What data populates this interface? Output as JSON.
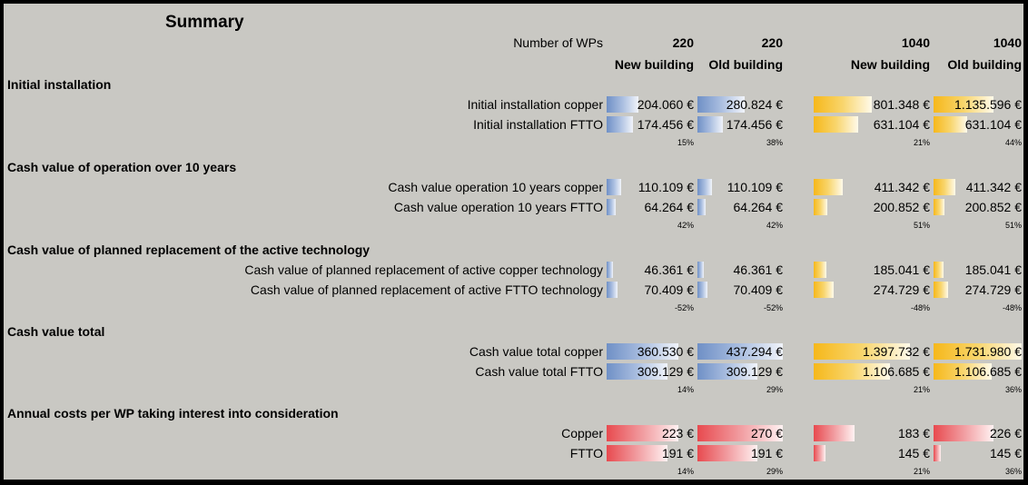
{
  "title": "Summary",
  "header": {
    "wp_label": "Number of WPs",
    "columns": [
      {
        "wps": "220",
        "type": "New building"
      },
      {
        "wps": "220",
        "type": "Old building"
      },
      {
        "wps": "1040",
        "type": "New building"
      },
      {
        "wps": "1040",
        "type": "Old building"
      }
    ]
  },
  "sections": [
    {
      "title": "Initial installation",
      "rows": [
        {
          "label": "Initial installation copper",
          "cells": [
            {
              "text": "204.060 €",
              "fill": 0.36
            },
            {
              "text": "280.824 €",
              "fill": 0.55
            },
            {
              "text": "801.348 €",
              "fill": 0.5
            },
            {
              "text": "1.135.596 €",
              "fill": 0.68
            }
          ]
        },
        {
          "label": "Initial installation FTTO",
          "cells": [
            {
              "text": "174.456 €",
              "fill": 0.3
            },
            {
              "text": "174.456 €",
              "fill": 0.3
            },
            {
              "text": "631.104 €",
              "fill": 0.38
            },
            {
              "text": "631.104 €",
              "fill": 0.38
            }
          ]
        }
      ],
      "diffs": [
        "15%",
        "38%",
        "21%",
        "44%"
      ]
    },
    {
      "title": "Cash value of operation over 10 years",
      "rows": [
        {
          "label": "Cash value operation 10 years copper",
          "cells": [
            {
              "text": "110.109 €",
              "fill": 0.17
            },
            {
              "text": "110.109 €",
              "fill": 0.17
            },
            {
              "text": "411.342 €",
              "fill": 0.25
            },
            {
              "text": "411.342 €",
              "fill": 0.25
            }
          ]
        },
        {
          "label": "Cash value operation 10 years FTTO",
          "cells": [
            {
              "text": "64.264 €",
              "fill": 0.1
            },
            {
              "text": "64.264 €",
              "fill": 0.1
            },
            {
              "text": "200.852 €",
              "fill": 0.12
            },
            {
              "text": "200.852 €",
              "fill": 0.12
            }
          ]
        }
      ],
      "diffs": [
        "42%",
        "42%",
        "51%",
        "51%"
      ]
    },
    {
      "title": "Cash value of planned replacement of the active technology",
      "rows": [
        {
          "label": "Cash value of planned replacement of active copper technology",
          "cells": [
            {
              "text": "46.361 €",
              "fill": 0.07
            },
            {
              "text": "46.361 €",
              "fill": 0.07
            },
            {
              "text": "185.041 €",
              "fill": 0.11
            },
            {
              "text": "185.041 €",
              "fill": 0.11
            }
          ]
        },
        {
          "label": "Cash value of planned replacement of active FTTO technology",
          "cells": [
            {
              "text": "70.409 €",
              "fill": 0.12
            },
            {
              "text": "70.409 €",
              "fill": 0.12
            },
            {
              "text": "274.729 €",
              "fill": 0.17
            },
            {
              "text": "274.729 €",
              "fill": 0.17
            }
          ]
        }
      ],
      "diffs": [
        "-52%",
        "-52%",
        "-48%",
        "-48%"
      ]
    },
    {
      "title": "Cash value total",
      "rows": [
        {
          "label": "Cash value total copper",
          "cells": [
            {
              "text": "360.530 €",
              "fill": 0.82
            },
            {
              "text": "437.294 €",
              "fill": 1.0
            },
            {
              "text": "1.397.732 €",
              "fill": 0.83
            },
            {
              "text": "1.731.980 €",
              "fill": 1.0
            }
          ]
        },
        {
          "label": "Cash value total FTTO",
          "cells": [
            {
              "text": "309.129 €",
              "fill": 0.7
            },
            {
              "text": "309.129 €",
              "fill": 0.7
            },
            {
              "text": "1.106.685 €",
              "fill": 0.66
            },
            {
              "text": "1.106.685 €",
              "fill": 0.66
            }
          ]
        }
      ],
      "diffs": [
        "14%",
        "29%",
        "21%",
        "36%"
      ]
    },
    {
      "title": "Annual costs per WP taking interest into consideration",
      "rows": [
        {
          "label": "Copper",
          "cells": [
            {
              "text": "223 €",
              "fill": 0.82
            },
            {
              "text": "270 €",
              "fill": 1.0
            },
            {
              "text": "183 €",
              "fill": 0.35
            },
            {
              "text": "226 €",
              "fill": 0.68
            }
          ]
        },
        {
          "label": "FTTO",
          "cells": [
            {
              "text": "191 €",
              "fill": 0.7
            },
            {
              "text": "191 €",
              "fill": 0.7
            },
            {
              "text": "145 €",
              "fill": 0.1
            },
            {
              "text": "145 €",
              "fill": 0.08
            }
          ]
        }
      ],
      "diffs": [
        "14%",
        "29%",
        "21%",
        "36%"
      ]
    }
  ],
  "colors": {
    "small_bars": "#6f90c6",
    "large_bars": "#f6b81b",
    "annual_bars": "#e84a4f",
    "background": "#c9c8c3"
  }
}
